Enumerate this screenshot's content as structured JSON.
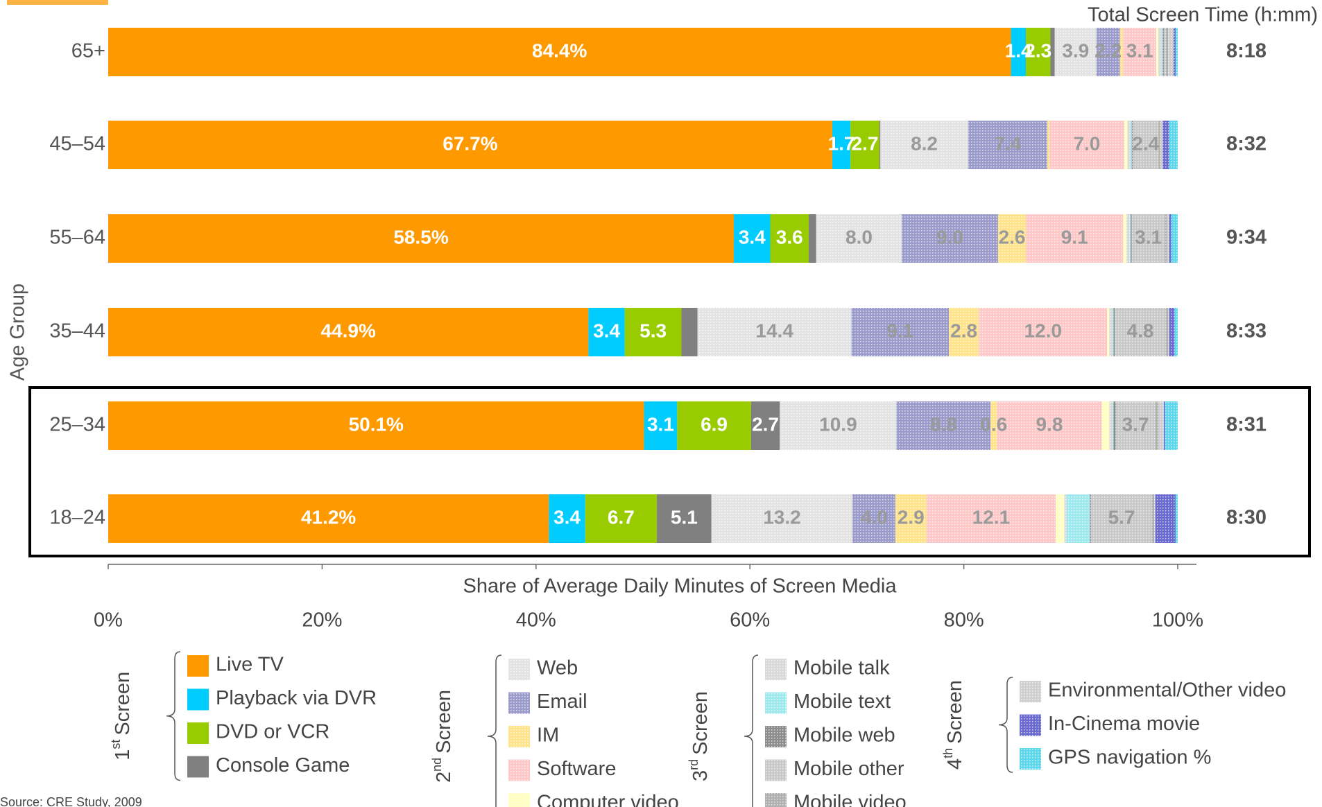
{
  "chart_data": {
    "type": "stacked-bar-horizontal",
    "y_label": "Age Group",
    "x_label": "Share of Average Daily Minutes of Screen Media",
    "totals_title": "Total Screen Time (h:mm)",
    "source": "Source: CRE Study, 2009",
    "categories": [
      "65+",
      "45–54",
      "55–64",
      "35–44",
      "25–34",
      "18–24"
    ],
    "totals": [
      "8:18",
      "8:32",
      "9:34",
      "8:33",
      "8:31",
      "8:30"
    ],
    "xlim": [
      0,
      100
    ],
    "xticks": [
      {
        "value": 0,
        "label": "0%"
      },
      {
        "value": 20,
        "label": "20%"
      },
      {
        "value": 40,
        "label": "40%"
      },
      {
        "value": 60,
        "label": "60%"
      },
      {
        "value": 80,
        "label": "80%"
      },
      {
        "value": 100,
        "label": "100%"
      }
    ],
    "grid": false,
    "groups": [
      {
        "ordinal": "1",
        "suffix": "st",
        "word": "Screen",
        "fill": "solid",
        "label_color": "#ffffff",
        "series": [
          {
            "name": "Live TV",
            "color": "#ff9900",
            "values": [
              84.4,
              67.7,
              58.5,
              44.9,
              50.1,
              41.2
            ],
            "value_labels": [
              "84.4%",
              "67.7%",
              "58.5%",
              "44.9%",
              "50.1%",
              "41.2%"
            ]
          },
          {
            "name": "Playback via DVR",
            "color": "#00ccff",
            "values": [
              1.4,
              1.7,
              3.4,
              3.4,
              3.1,
              3.4
            ],
            "value_labels": [
              "1.4",
              "1.7",
              "3.4",
              "3.4",
              "3.1",
              "3.4"
            ]
          },
          {
            "name": "DVD or VCR",
            "color": "#99cc00",
            "values": [
              2.3,
              2.7,
              3.6,
              5.3,
              6.9,
              6.7
            ],
            "value_labels": [
              "2.3",
              "2.7",
              "3.6",
              "5.3",
              "6.9",
              "6.7"
            ]
          },
          {
            "name": "Console Game",
            "color": "#808080",
            "values": [
              0.4,
              0.1,
              0.7,
              1.5,
              2.7,
              5.1
            ],
            "value_labels": [
              null,
              null,
              null,
              null,
              "2.7",
              "5.1"
            ]
          }
        ]
      },
      {
        "ordinal": "2",
        "suffix": "nd",
        "word": "Screen",
        "fill": "hatched",
        "label_color": "#9a9a9a",
        "series": [
          {
            "name": "Web",
            "color": "#e3e3e3",
            "values": [
              3.9,
              8.2,
              8.0,
              14.4,
              10.9,
              13.2
            ],
            "value_labels": [
              "3.9",
              "8.2",
              "8.0",
              "14.4",
              "10.9",
              "13.2"
            ]
          },
          {
            "name": "Email",
            "color": "#9a9acb",
            "values": [
              2.2,
              7.4,
              9.0,
              9.1,
              8.8,
              4.0
            ],
            "value_labels": [
              "2.2",
              "7.4",
              "9.0",
              "9.1",
              "8.8",
              "4.0"
            ]
          },
          {
            "name": "IM",
            "color": "#ffe38a",
            "values": [
              0.3,
              0.2,
              2.6,
              2.8,
              0.6,
              2.9
            ],
            "value_labels": [
              null,
              null,
              "2.6",
              "2.8",
              "0.6",
              "2.9"
            ]
          },
          {
            "name": "Software",
            "color": "#ffc8c8",
            "values": [
              3.1,
              7.0,
              9.1,
              12.0,
              9.8,
              12.1
            ],
            "value_labels": [
              "3.1",
              "7.0",
              "9.1",
              "12.0",
              "9.8",
              "12.1"
            ]
          },
          {
            "name": "Computer video",
            "color": "#ffffc4",
            "values": [
              0.2,
              0.3,
              0.3,
              0.2,
              0.7,
              0.8
            ],
            "value_labels": [
              null,
              null,
              null,
              null,
              null,
              null
            ]
          }
        ]
      },
      {
        "ordinal": "3",
        "suffix": "rd",
        "word": "Screen",
        "fill": "hatched",
        "label_color": "#9a9a9a",
        "series": [
          {
            "name": "Mobile talk",
            "color": "#d9d9d9",
            "values": [
              0.3,
              0.3,
              0.3,
              0.3,
              0.3,
              0.2
            ],
            "value_labels": [
              null,
              null,
              null,
              null,
              null,
              null
            ]
          },
          {
            "name": "Mobile text",
            "color": "#9fe8ee",
            "values": [
              0.1,
              0.1,
              0.1,
              0.1,
              0.1,
              2.2
            ],
            "value_labels": [
              null,
              null,
              null,
              null,
              null,
              null
            ]
          },
          {
            "name": "Mobile web",
            "color": "#8c8c8c",
            "values": [
              0.1,
              0.1,
              0.1,
              0.1,
              0.2,
              0.1
            ],
            "value_labels": [
              null,
              null,
              null,
              null,
              null,
              null
            ]
          },
          {
            "name": "Mobile other",
            "color": "#c8c8c8",
            "values": [
              0.2,
              2.4,
              3.1,
              4.8,
              3.7,
              5.7
            ],
            "value_labels": [
              null,
              "2.4",
              "3.1",
              "4.8",
              "3.7",
              "5.7"
            ]
          },
          {
            "name": "Mobile video",
            "color": "#b0b0b0",
            "values": [
              0.2,
              0.2,
              0.2,
              0.2,
              0.3,
              0.2
            ],
            "value_labels": [
              null,
              null,
              null,
              null,
              null,
              null
            ]
          }
        ]
      },
      {
        "ordinal": "4",
        "suffix": "th",
        "word": "Screen",
        "fill": "hatched",
        "label_color": "#9a9a9a",
        "series": [
          {
            "name": "Environmental/Other video",
            "color": "#cfcfcf",
            "values": [
              0.5,
              0.2,
              0.2,
              0.1,
              0.5,
              0.1
            ],
            "value_labels": [
              null,
              null,
              null,
              null,
              null,
              null
            ]
          },
          {
            "name": "In-Cinema movie",
            "color": "#6b6bcf",
            "values": [
              0.2,
              0.6,
              0.2,
              0.5,
              0.1,
              1.9
            ],
            "value_labels": [
              null,
              null,
              null,
              null,
              null,
              null
            ]
          },
          {
            "name": "GPS navigation %",
            "color": "#5fd7ea",
            "values": [
              0.2,
              0.8,
              0.6,
              0.3,
              1.2,
              0.2
            ],
            "value_labels": [
              null,
              null,
              null,
              null,
              null,
              null
            ]
          }
        ]
      }
    ]
  }
}
